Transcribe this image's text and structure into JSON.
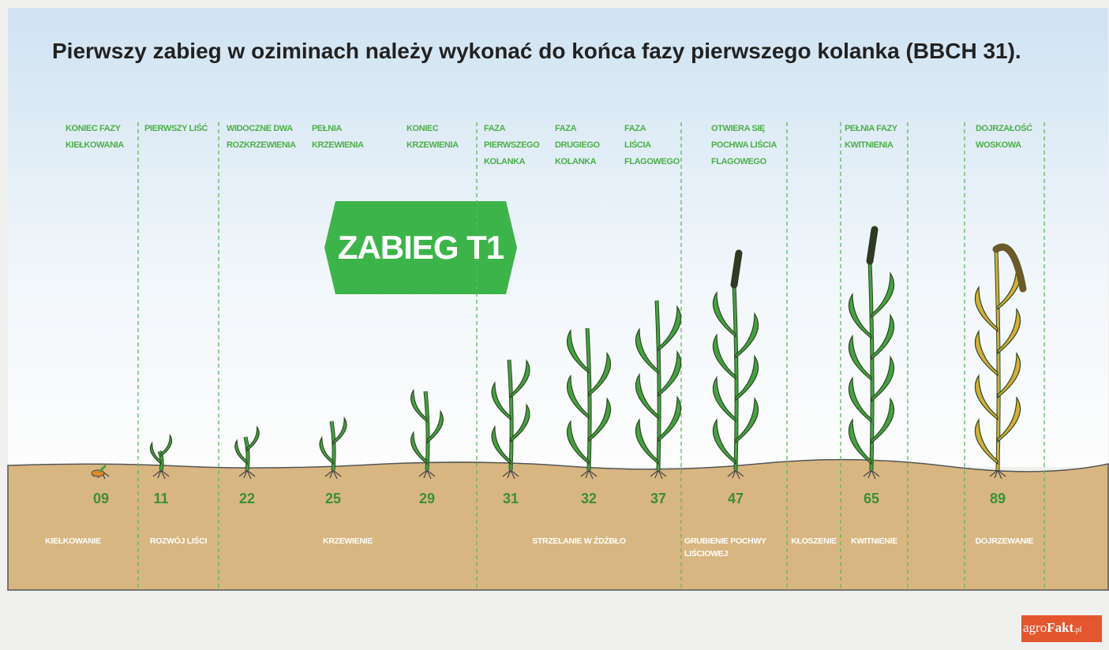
{
  "header": {
    "title": "Pierwszy zabieg w oziminach należy wykonać do końca fazy pierwszego kolanka (BBCH 31)."
  },
  "badge": "ZABIEG T1",
  "stages": [
    {
      "label": "KONIEC FAZY\nKIEŁKOWANIA",
      "code": "09"
    },
    {
      "label": "PIERWSZY LIŚĆ",
      "code": "11"
    },
    {
      "label": "WIDOCZNE DWA\nROZKRZEWIENIA",
      "code": "22"
    },
    {
      "label": "PEŁNIA\nKRZEWIENIA",
      "code": "25"
    },
    {
      "label": "KONIEC\nKRZEWIENIA",
      "code": "29"
    },
    {
      "label": "FAZA\nPIERWSZEGO\nKOLANKA",
      "code": "31"
    },
    {
      "label": "FAZA\nDRUGIEGO\nKOLANKA",
      "code": "32"
    },
    {
      "label": "FAZA\nLIŚCIA\nFLAGOWEGO",
      "code": "37"
    },
    {
      "label": "OTWIERA SIĘ\nPOCHWA LIŚCIA\nFLAGOWEGO",
      "code": "47"
    },
    {
      "label": "PEŁNIA FAZY\nKWITNIENIA",
      "code": "65"
    },
    {
      "label": "DOJRZAŁOŚĆ\nWOSKOWA",
      "code": "89"
    }
  ],
  "phases": [
    "KIEŁKOWANIE",
    "ROZWÓJ LIŚCI",
    "KRZEWIENIE",
    "STRZELANIE W ŹDŹBŁO",
    "GRUBIENIE POCHWY\nLIŚCIOWEJ",
    "KŁOSZENIE",
    "KWITNIENIE",
    "DOJRZEWANIE"
  ],
  "logo": {
    "brand": "agro",
    "name": "Fakt",
    "suffix": ".pl"
  }
}
